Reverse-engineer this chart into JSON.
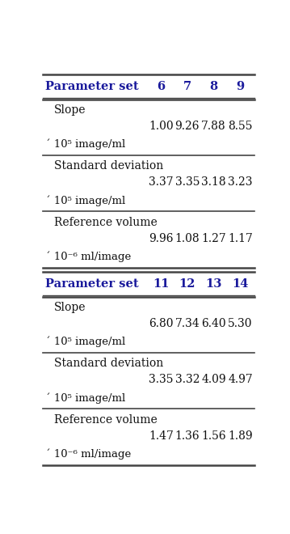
{
  "table1": {
    "header": [
      "Parameter set",
      "6",
      "7",
      "8",
      "9"
    ],
    "rows": [
      {
        "label_line1": "Slope",
        "label_line2": "´ 10⁵ image/ml",
        "values": [
          "1.00",
          "9.26",
          "7.88",
          "8.55"
        ]
      },
      {
        "label_line1": "Standard deviation",
        "label_line2": "´ 10⁵ image/ml",
        "values": [
          "3.37",
          "3.35",
          "3.18",
          "3.23"
        ]
      },
      {
        "label_line1": "Reference volume",
        "label_line2": "´ 10⁻⁶ ml/image",
        "values": [
          "9.96",
          "1.08",
          "1.27",
          "1.17"
        ]
      }
    ]
  },
  "table2": {
    "header": [
      "Parameter set",
      "11",
      "12",
      "13",
      "14"
    ],
    "rows": [
      {
        "label_line1": "Slope",
        "label_line2": "´ 10⁵ image/ml",
        "values": [
          "6.80",
          "7.34",
          "6.40",
          "5.30"
        ]
      },
      {
        "label_line1": "Standard deviation",
        "label_line2": "´ 10⁵ image/ml",
        "values": [
          "3.35",
          "3.32",
          "4.09",
          "4.97"
        ]
      },
      {
        "label_line1": "Reference volume",
        "label_line2": "´ 10⁻⁶ ml/image",
        "values": [
          "1.47",
          "1.36",
          "1.56",
          "1.89"
        ]
      }
    ]
  },
  "header_color": "#1a1a9c",
  "text_color": "#111111",
  "bg_color": "#ffffff",
  "line_color": "#444444",
  "header_fontsize": 10.5,
  "data_fontsize": 10,
  "label_fontsize": 10
}
